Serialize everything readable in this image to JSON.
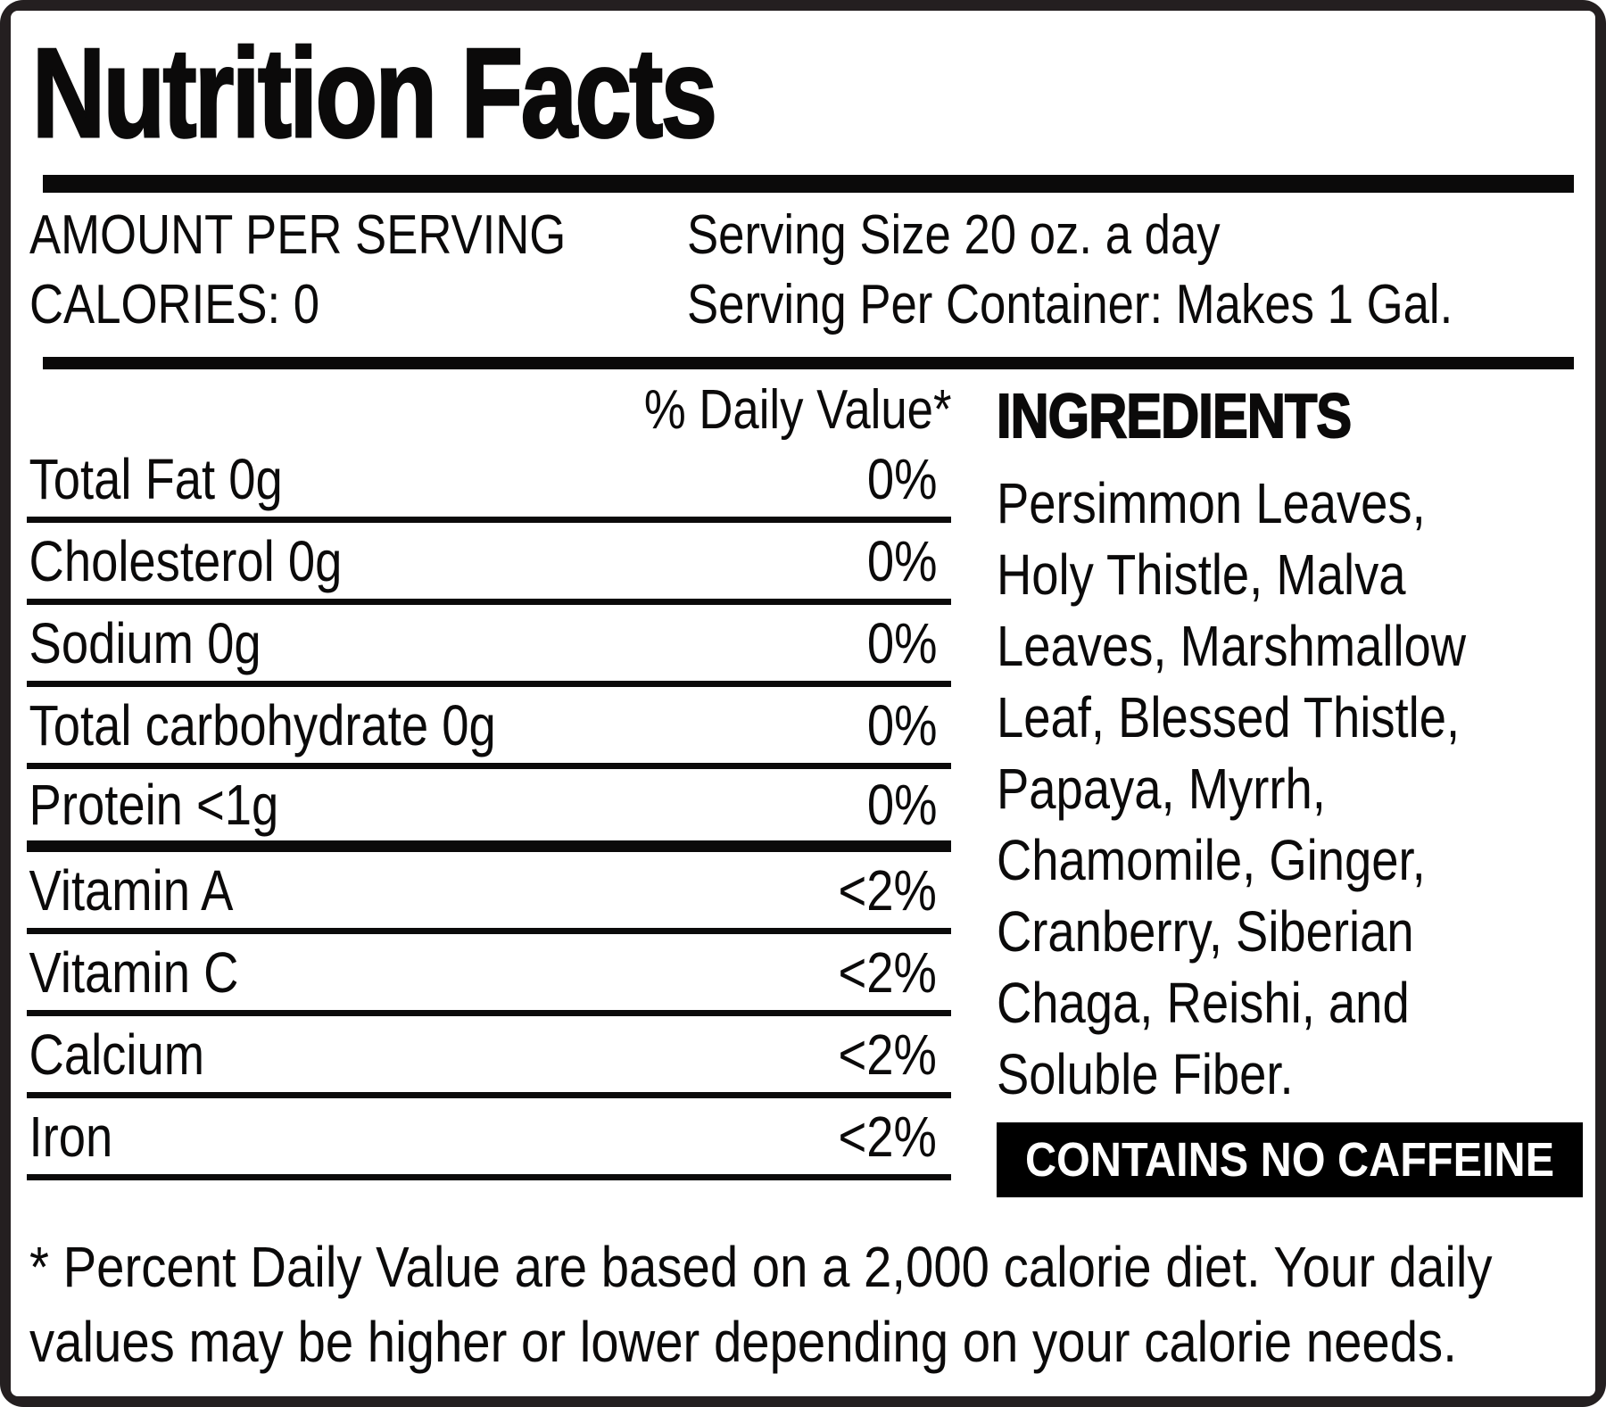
{
  "label": {
    "title": "Nutrition Facts",
    "serving": {
      "amount_per_serving": "AMOUNT PER SERVING",
      "calories": "CALORIES: 0",
      "serving_size": "Serving Size 20 oz. a day",
      "serving_per_container": "Serving Per Container: Makes 1 Gal."
    },
    "daily_value_header": "% Daily Value*",
    "nutrients": [
      {
        "name": "Total Fat 0g",
        "dv": "0%"
      },
      {
        "name": "Cholesterol 0g",
        "dv": "0%"
      },
      {
        "name": "Sodium 0g",
        "dv": "0%"
      },
      {
        "name": "Total carbohydrate 0g",
        "dv": "0%"
      },
      {
        "name": "Protein <1g",
        "dv": "0%",
        "thick_divider": true
      },
      {
        "name": "Vitamin A",
        "dv": "<2%"
      },
      {
        "name": "Vitamin C",
        "dv": "<2%"
      },
      {
        "name": "Calcium",
        "dv": "<2%"
      },
      {
        "name": "Iron",
        "dv": "<2%"
      }
    ],
    "ingredients": {
      "header": "INGREDIENTS",
      "lines": [
        "Persimmon Leaves,",
        "Holy Thistle, Malva",
        "Leaves, Marshmallow",
        "Leaf, Blessed Thistle,",
        "Papaya, Myrrh,",
        "Chamomile, Ginger,",
        "Cranberry, Siberian",
        "Chaga, Reishi, and",
        "Soluble Fiber."
      ]
    },
    "caffeine_notice": "CONTAINS NO CAFFEINE",
    "footnote_lines": [
      "* Percent Daily Value are based on a 2,000 calorie diet. Your daily",
      "values may be higher or lower depending on your calorie needs."
    ],
    "colors": {
      "frame": "#241f20",
      "panel": "#ffffff",
      "text": "#0b0a0a",
      "notice_bg": "#000000",
      "notice_text": "#ffffff"
    }
  }
}
